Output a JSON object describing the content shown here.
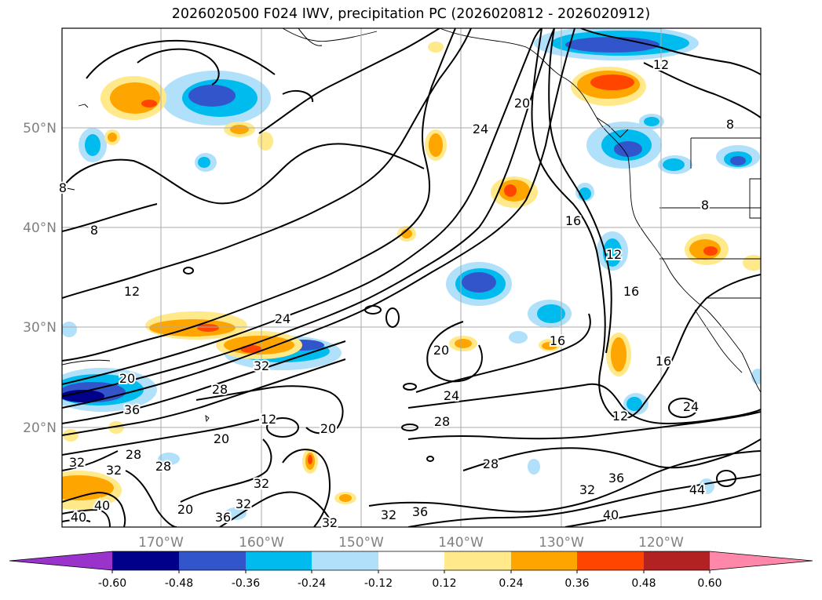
{
  "title": "2026020500 F024 IWV, precipitation PC (2026020812 - 2026020912)",
  "lat_labels": [
    "50°N",
    "40°N",
    "30°N",
    "20°N"
  ],
  "lon_labels": [
    "170°W",
    "160°W",
    "150°W",
    "140°W",
    "130°W",
    "120°W"
  ],
  "contour_labels": [
    "8",
    "12",
    "16",
    "20",
    "24",
    "28",
    "32",
    "36",
    "40",
    "44"
  ],
  "colorbar": {
    "ticks": [
      "-0.60",
      "-0.48",
      "-0.36",
      "-0.24",
      "-0.12",
      "0.12",
      "0.24",
      "0.36",
      "0.48",
      "0.60"
    ],
    "colors": [
      "#9933cc",
      "#00008b",
      "#3355cc",
      "#00bbee",
      "#b0e0fa",
      "#ffffff",
      "#ffe98a",
      "#ffa500",
      "#ff4500",
      "#b22222",
      "#ff88aa"
    ]
  }
}
